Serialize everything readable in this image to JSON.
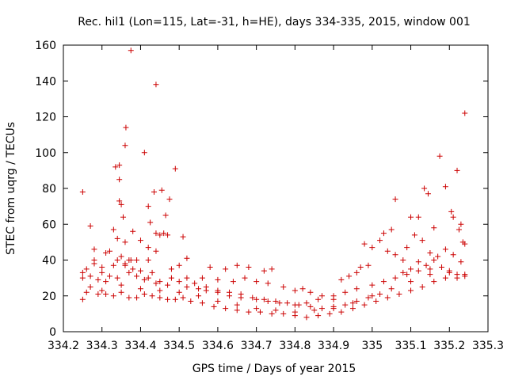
{
  "chart_data": {
    "type": "scatter",
    "title": "Rec. hil1 (Lon=115, Lat=-31, h=HE), days 334-335, 2015, window 001",
    "xlabel": "GPS time / Days of year 2015",
    "ylabel": "STEC from uqrg / TECUs",
    "xlim": [
      334.2,
      335.3
    ],
    "ylim": [
      0,
      160
    ],
    "xticks": [
      "334.2",
      "334.3",
      "334.4",
      "334.5",
      "334.6",
      "334.7",
      "334.8",
      "334.9",
      "335",
      "335.1",
      "335.2",
      "335.3"
    ],
    "yticks": [
      "0",
      "20",
      "40",
      "60",
      "80",
      "100",
      "120",
      "140",
      "160"
    ],
    "grid": false,
    "legend": "none",
    "marker": "plus",
    "color": "#cc0000",
    "points": [
      [
        334.25,
        78
      ],
      [
        334.27,
        59
      ],
      [
        334.28,
        46
      ],
      [
        334.31,
        44
      ],
      [
        334.33,
        57
      ],
      [
        334.335,
        92
      ],
      [
        334.345,
        93
      ],
      [
        334.345,
        85
      ],
      [
        334.345,
        73
      ],
      [
        334.35,
        71
      ],
      [
        334.355,
        64
      ],
      [
        334.36,
        104
      ],
      [
        334.362,
        114
      ],
      [
        334.375,
        157
      ],
      [
        334.41,
        100
      ],
      [
        334.42,
        70
      ],
      [
        334.425,
        61
      ],
      [
        334.435,
        78
      ],
      [
        334.44,
        138
      ],
      [
        334.455,
        79
      ],
      [
        334.465,
        65
      ],
      [
        334.475,
        74
      ],
      [
        334.49,
        91
      ],
      [
        334.51,
        53
      ],
      [
        334.375,
        40
      ],
      [
        334.39,
        40
      ],
      [
        334.44,
        55
      ],
      [
        334.45,
        54
      ],
      [
        334.46,
        55
      ],
      [
        334.47,
        54
      ],
      [
        334.37,
        40
      ],
      [
        334.36,
        37
      ],
      [
        334.42,
        40
      ],
      [
        335.06,
        74
      ],
      [
        335.1,
        64
      ],
      [
        335.12,
        64
      ],
      [
        335.135,
        80
      ],
      [
        335.145,
        77
      ],
      [
        335.16,
        58
      ],
      [
        335.175,
        98
      ],
      [
        335.19,
        81
      ],
      [
        335.205,
        67
      ],
      [
        335.21,
        64
      ],
      [
        335.22,
        90
      ],
      [
        335.225,
        57
      ],
      [
        335.23,
        60
      ],
      [
        335.235,
        50
      ],
      [
        335.24,
        49
      ],
      [
        335.24,
        122
      ],
      [
        334.25,
        33
      ],
      [
        334.25,
        30
      ],
      [
        334.26,
        35
      ],
      [
        334.27,
        31
      ],
      [
        334.28,
        38
      ],
      [
        334.29,
        29
      ],
      [
        334.3,
        33
      ],
      [
        334.31,
        28
      ],
      [
        334.32,
        31
      ],
      [
        334.33,
        37
      ],
      [
        334.34,
        30
      ],
      [
        334.35,
        42
      ],
      [
        334.36,
        38
      ],
      [
        334.38,
        35
      ],
      [
        334.39,
        31
      ],
      [
        334.4,
        34
      ],
      [
        334.41,
        29
      ],
      [
        334.42,
        30
      ],
      [
        334.43,
        33
      ],
      [
        334.44,
        27
      ],
      [
        334.45,
        28
      ],
      [
        334.47,
        26
      ],
      [
        334.48,
        30
      ],
      [
        334.5,
        28
      ],
      [
        334.52,
        25
      ],
      [
        334.55,
        24
      ],
      [
        334.57,
        23
      ],
      [
        334.6,
        22
      ],
      [
        334.63,
        20
      ],
      [
        334.66,
        19
      ],
      [
        334.7,
        18
      ],
      [
        334.73,
        17
      ],
      [
        334.76,
        16
      ],
      [
        334.8,
        15
      ],
      [
        334.83,
        16
      ],
      [
        334.86,
        18
      ],
      [
        334.9,
        20
      ],
      [
        334.93,
        22
      ],
      [
        334.96,
        24
      ],
      [
        335.0,
        26
      ],
      [
        335.03,
        28
      ],
      [
        335.06,
        30
      ],
      [
        335.09,
        32
      ],
      [
        335.12,
        34
      ],
      [
        335.15,
        35
      ],
      [
        335.18,
        36
      ],
      [
        335.2,
        33
      ],
      [
        335.22,
        32
      ],
      [
        335.24,
        31
      ],
      [
        334.26,
        22
      ],
      [
        334.27,
        25
      ],
      [
        334.29,
        21
      ],
      [
        334.31,
        21
      ],
      [
        334.33,
        20
      ],
      [
        334.35,
        22
      ],
      [
        334.37,
        19
      ],
      [
        334.39,
        19
      ],
      [
        334.41,
        21
      ],
      [
        334.43,
        20
      ],
      [
        334.45,
        19
      ],
      [
        334.47,
        18
      ],
      [
        334.49,
        18
      ],
      [
        334.51,
        19
      ],
      [
        334.53,
        17
      ],
      [
        334.56,
        16
      ],
      [
        334.59,
        14
      ],
      [
        334.62,
        13
      ],
      [
        334.65,
        12
      ],
      [
        334.68,
        11
      ],
      [
        334.71,
        11
      ],
      [
        334.74,
        10
      ],
      [
        334.77,
        10
      ],
      [
        334.8,
        9
      ],
      [
        334.83,
        8
      ],
      [
        334.86,
        9
      ],
      [
        334.89,
        10
      ],
      [
        334.92,
        11
      ],
      [
        334.95,
        13
      ],
      [
        334.98,
        15
      ],
      [
        335.01,
        17
      ],
      [
        335.04,
        19
      ],
      [
        335.07,
        21
      ],
      [
        335.1,
        23
      ],
      [
        335.13,
        25
      ],
      [
        335.16,
        28
      ],
      [
        335.19,
        30
      ],
      [
        335.22,
        30
      ],
      [
        335.24,
        32
      ],
      [
        334.25,
        18
      ],
      [
        334.3,
        23
      ],
      [
        334.35,
        26
      ],
      [
        334.4,
        24
      ],
      [
        334.45,
        23
      ],
      [
        334.5,
        22
      ],
      [
        334.55,
        20
      ],
      [
        334.6,
        17
      ],
      [
        334.65,
        15
      ],
      [
        334.7,
        13
      ],
      [
        334.75,
        12
      ],
      [
        334.8,
        11
      ],
      [
        334.85,
        12
      ],
      [
        334.9,
        13
      ],
      [
        334.95,
        16
      ],
      [
        335.0,
        20
      ],
      [
        335.05,
        24
      ],
      [
        335.1,
        28
      ],
      [
        335.15,
        32
      ],
      [
        335.2,
        34
      ],
      [
        334.58,
        36
      ],
      [
        334.62,
        35
      ],
      [
        334.65,
        37
      ],
      [
        334.68,
        36
      ],
      [
        334.72,
        34
      ],
      [
        334.74,
        35
      ],
      [
        334.56,
        30
      ],
      [
        334.6,
        29
      ],
      [
        334.64,
        28
      ],
      [
        334.67,
        30
      ],
      [
        334.7,
        28
      ],
      [
        334.73,
        27
      ],
      [
        334.77,
        25
      ],
      [
        334.8,
        23
      ],
      [
        334.82,
        24
      ],
      [
        334.84,
        22
      ],
      [
        334.87,
        20
      ],
      [
        334.9,
        18
      ],
      [
        334.92,
        29
      ],
      [
        334.94,
        31
      ],
      [
        334.96,
        33
      ],
      [
        334.97,
        36
      ],
      [
        334.98,
        49
      ],
      [
        334.99,
        37
      ],
      [
        335.0,
        47
      ],
      [
        335.02,
        51
      ],
      [
        335.03,
        55
      ],
      [
        335.05,
        57
      ],
      [
        335.04,
        45
      ],
      [
        335.06,
        43
      ],
      [
        335.08,
        40
      ],
      [
        335.09,
        47
      ],
      [
        335.11,
        54
      ],
      [
        335.13,
        51
      ],
      [
        335.15,
        44
      ],
      [
        335.17,
        42
      ],
      [
        335.19,
        46
      ],
      [
        335.21,
        43
      ],
      [
        335.23,
        39
      ],
      [
        335.16,
        40
      ],
      [
        335.14,
        37
      ],
      [
        335.12,
        39
      ],
      [
        335.1,
        35
      ],
      [
        335.08,
        33
      ],
      [
        334.52,
        30
      ],
      [
        334.54,
        27
      ],
      [
        334.57,
        25
      ],
      [
        334.6,
        23
      ],
      [
        334.63,
        22
      ],
      [
        334.66,
        21
      ],
      [
        334.69,
        19
      ],
      [
        334.72,
        18
      ],
      [
        334.75,
        17
      ],
      [
        334.78,
        16
      ],
      [
        334.81,
        15
      ],
      [
        334.84,
        14
      ],
      [
        334.87,
        13
      ],
      [
        334.9,
        14
      ],
      [
        334.93,
        15
      ],
      [
        334.96,
        17
      ],
      [
        334.99,
        19
      ],
      [
        335.02,
        21
      ],
      [
        334.5,
        37
      ],
      [
        334.52,
        41
      ],
      [
        334.48,
        35
      ],
      [
        334.44,
        45
      ],
      [
        334.42,
        47
      ],
      [
        334.4,
        51
      ],
      [
        334.38,
        56
      ],
      [
        334.36,
        50
      ],
      [
        334.34,
        52
      ],
      [
        334.32,
        45
      ],
      [
        334.28,
        40
      ],
      [
        334.3,
        36
      ],
      [
        334.34,
        40
      ],
      [
        334.37,
        33
      ]
    ]
  }
}
